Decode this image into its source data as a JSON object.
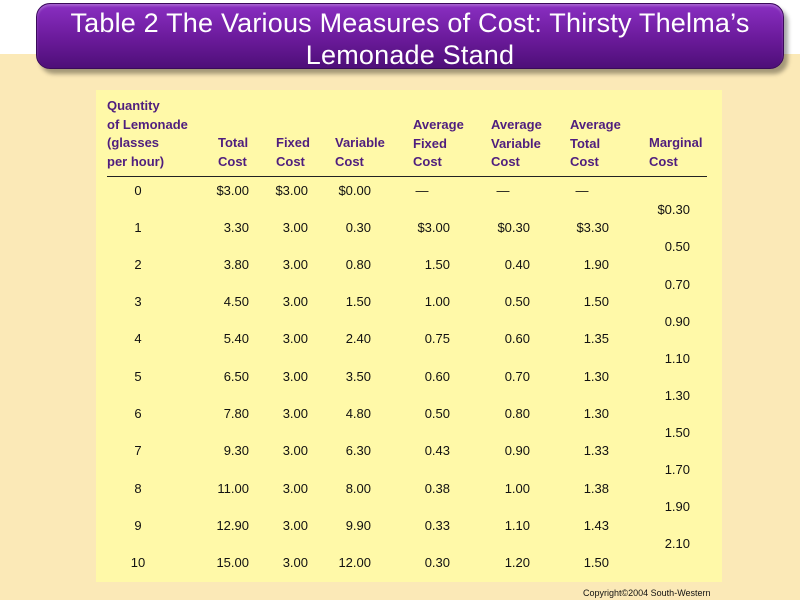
{
  "title": "Table 2 The Various Measures of Cost: Thirsty Thelma’s Lemonade Stand",
  "headers": {
    "quantity": [
      "Quantity",
      "of Lemonade",
      "(glasses",
      "per hour)"
    ],
    "total_cost": [
      "Total",
      "Cost"
    ],
    "fixed_cost": [
      "Fixed",
      "Cost"
    ],
    "variable_cost": [
      "Variable",
      "Cost"
    ],
    "average_fixed_cost": [
      "Average",
      "Fixed",
      "Cost"
    ],
    "average_variable_cost": [
      "Average",
      "Variable",
      "Cost"
    ],
    "average_total_cost": [
      "Average",
      "Total",
      "Cost"
    ],
    "marginal_cost": [
      "Marginal",
      "Cost"
    ]
  },
  "rows": [
    {
      "q": "0",
      "tc": "$3.00",
      "fc": "$3.00",
      "vc": "$0.00",
      "afc": "—",
      "avc": "—",
      "atc": "—"
    },
    {
      "q": "1",
      "tc": "3.30",
      "fc": "3.00",
      "vc": "0.30",
      "afc": "$3.00",
      "avc": "$0.30",
      "atc": "$3.30"
    },
    {
      "q": "2",
      "tc": "3.80",
      "fc": "3.00",
      "vc": "0.80",
      "afc": "1.50",
      "avc": "0.40",
      "atc": "1.90"
    },
    {
      "q": "3",
      "tc": "4.50",
      "fc": "3.00",
      "vc": "1.50",
      "afc": "1.00",
      "avc": "0.50",
      "atc": "1.50"
    },
    {
      "q": "4",
      "tc": "5.40",
      "fc": "3.00",
      "vc": "2.40",
      "afc": "0.75",
      "avc": "0.60",
      "atc": "1.35"
    },
    {
      "q": "5",
      "tc": "6.50",
      "fc": "3.00",
      "vc": "3.50",
      "afc": "0.60",
      "avc": "0.70",
      "atc": "1.30"
    },
    {
      "q": "6",
      "tc": "7.80",
      "fc": "3.00",
      "vc": "4.80",
      "afc": "0.50",
      "avc": "0.80",
      "atc": "1.30"
    },
    {
      "q": "7",
      "tc": "9.30",
      "fc": "3.00",
      "vc": "6.30",
      "afc": "0.43",
      "avc": "0.90",
      "atc": "1.33"
    },
    {
      "q": "8",
      "tc": "11.00",
      "fc": "3.00",
      "vc": "8.00",
      "afc": "0.38",
      "avc": "1.00",
      "atc": "1.38"
    },
    {
      "q": "9",
      "tc": "12.90",
      "fc": "3.00",
      "vc": "9.90",
      "afc": "0.33",
      "avc": "1.10",
      "atc": "1.43"
    },
    {
      "q": "10",
      "tc": "15.00",
      "fc": "3.00",
      "vc": "12.00",
      "afc": "0.30",
      "avc": "1.20",
      "atc": "1.50"
    }
  ],
  "marginal": [
    "$0.30",
    "0.50",
    "0.70",
    "0.90",
    "1.10",
    "1.30",
    "1.50",
    "1.70",
    "1.90",
    "2.10"
  ],
  "copyright": "Copyright©2004  South-Western"
}
